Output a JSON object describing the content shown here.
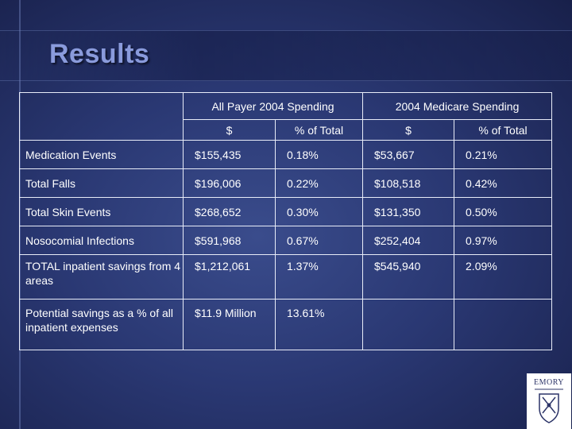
{
  "slide": {
    "title": "Results"
  },
  "table": {
    "group_headers": [
      "All Payer 2004 Spending",
      "2004 Medicare Spending"
    ],
    "sub_headers": [
      "$",
      "% of Total",
      "$",
      "% of Total"
    ],
    "rows": [
      {
        "label": "Medication Events",
        "values": [
          "$155,435",
          "0.18%",
          "$53,667",
          "0.21%"
        ]
      },
      {
        "label": "Total Falls",
        "values": [
          "$196,006",
          "0.22%",
          "$108,518",
          "0.42%"
        ]
      },
      {
        "label": "Total Skin Events",
        "values": [
          "$268,652",
          "0.30%",
          "$131,350",
          "0.50%"
        ]
      },
      {
        "label": "Nosocomial Infections",
        "values": [
          "$591,968",
          "0.67%",
          "$252,404",
          "0.97%"
        ]
      },
      {
        "label": "TOTAL inpatient savings from 4 areas",
        "values": [
          "$1,212,061",
          "1.37%",
          "$545,940",
          "2.09%"
        ]
      },
      {
        "label": "Potential savings as a % of all inpatient expenses",
        "values": [
          "$11.9 Million",
          "13.61%",
          "",
          ""
        ]
      }
    ]
  },
  "logo": {
    "text": "EMORY"
  }
}
